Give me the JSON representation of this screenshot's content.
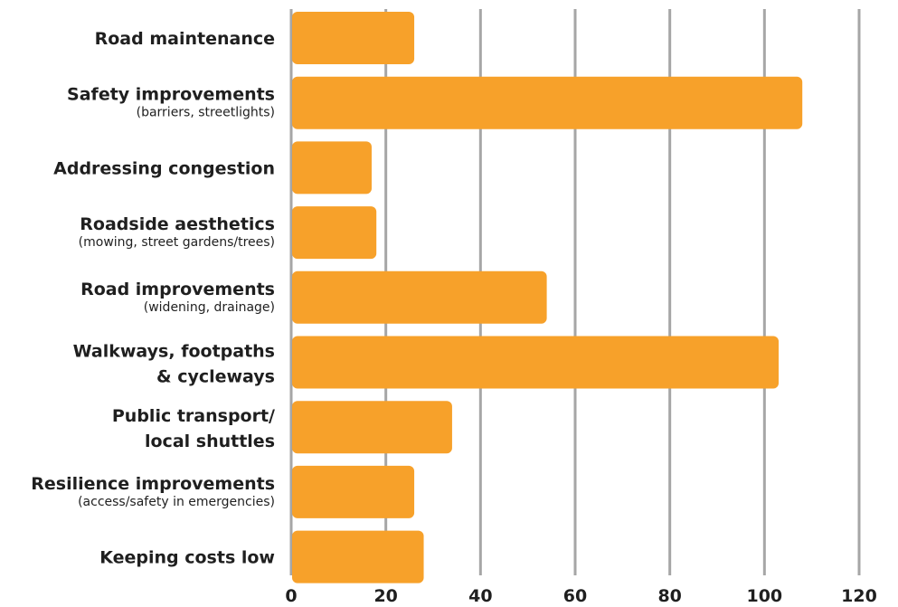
{
  "chart_data": {
    "type": "bar",
    "orientation": "horizontal",
    "title": "",
    "xlabel": "",
    "ylabel": "",
    "xlim": [
      0,
      120
    ],
    "ticks": [
      0,
      20,
      40,
      60,
      80,
      100,
      120
    ],
    "tick_labels": [
      "0",
      "20",
      "40",
      "60",
      "80",
      "100",
      "120"
    ],
    "grid": true,
    "bar_color": "#F7A12A",
    "gridline_color": "#A6A6A6",
    "categories": [
      {
        "lines": [
          "Road maintenance"
        ],
        "sub": ""
      },
      {
        "lines": [
          "Safety improvements"
        ],
        "sub": "(barriers, streetlights)"
      },
      {
        "lines": [
          "Addressing congestion"
        ],
        "sub": ""
      },
      {
        "lines": [
          "Roadside aesthetics"
        ],
        "sub": "(mowing, street gardens/trees)"
      },
      {
        "lines": [
          "Road improvements"
        ],
        "sub": "(widening, drainage)"
      },
      {
        "lines": [
          "Walkways, footpaths",
          "& cycleways"
        ],
        "sub": ""
      },
      {
        "lines": [
          "Public transport/",
          "local shuttles"
        ],
        "sub": ""
      },
      {
        "lines": [
          "Resilience improvements"
        ],
        "sub": "(access/safety in emergencies)"
      },
      {
        "lines": [
          "Keeping costs low"
        ],
        "sub": ""
      }
    ],
    "values": [
      26,
      108,
      17,
      18,
      54,
      103,
      34,
      26,
      28
    ]
  }
}
